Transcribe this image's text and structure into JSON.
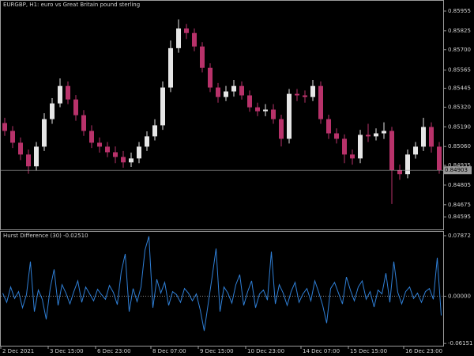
{
  "chart_data": [
    {
      "type": "candlestick",
      "title": "EURGBP, H1: euro vs Great Britain pound sterling",
      "up_color": "#e6e6e6",
      "down_color": "#b8326a",
      "open": [
        0.85215,
        0.85163,
        0.85085,
        0.85007,
        0.84929,
        0.85059,
        0.85241,
        0.85345,
        0.8546,
        0.85371,
        0.85267,
        0.85163,
        0.85085,
        0.85059,
        0.85022,
        0.84991,
        0.84955,
        0.84981,
        0.85059,
        0.85127,
        0.852,
        0.8545,
        0.8571,
        0.8584,
        0.8581,
        0.85721,
        0.8558,
        0.8545,
        0.85387,
        0.85424,
        0.8546,
        0.85398,
        0.85319,
        0.85293,
        0.85304,
        0.85241,
        0.85111,
        0.85408,
        0.85398,
        0.85387,
        0.8546,
        0.85241,
        0.85147,
        0.85111,
        0.85007,
        0.84981,
        0.85137,
        0.85127,
        0.85147,
        0.85163,
        0.84903,
        0.84877,
        0.85007,
        0.85059,
        0.85189,
        0.85059
      ],
      "high": [
        0.8525,
        0.85195,
        0.8512,
        0.8504,
        0.8509,
        0.8528,
        0.8538,
        0.8551,
        0.8549,
        0.854,
        0.853,
        0.852,
        0.8512,
        0.8509,
        0.8506,
        0.8503,
        0.8502,
        0.8509,
        0.8516,
        0.8524,
        0.8549,
        0.8576,
        0.859,
        0.8587,
        0.8584,
        0.8575,
        0.8561,
        0.8548,
        0.8546,
        0.855,
        0.8549,
        0.8543,
        0.8535,
        0.8534,
        0.8534,
        0.8527,
        0.8544,
        0.8544,
        0.8543,
        0.855,
        0.8549,
        0.8527,
        0.8518,
        0.8514,
        0.8504,
        0.8517,
        0.8521,
        0.8518,
        0.8522,
        0.8519,
        0.8494,
        0.8504,
        0.8509,
        0.8525,
        0.8522,
        0.8509
      ],
      "low": [
        0.8513,
        0.8505,
        0.8497,
        0.8488,
        0.849,
        0.8503,
        0.8521,
        0.8532,
        0.8534,
        0.8523,
        0.8513,
        0.8505,
        0.8502,
        0.8499,
        0.8495,
        0.8492,
        0.84925,
        0.8495,
        0.8503,
        0.851,
        0.8517,
        0.8542,
        0.8568,
        0.8577,
        0.8569,
        0.8555,
        0.8542,
        0.8535,
        0.8536,
        0.8539,
        0.8537,
        0.8529,
        0.8526,
        0.8526,
        0.8521,
        0.8506,
        0.8508,
        0.8536,
        0.8535,
        0.8536,
        0.8521,
        0.8511,
        0.8508,
        0.8495,
        0.8494,
        0.8495,
        0.8509,
        0.851,
        0.8511,
        0.8468,
        0.8484,
        0.8485,
        0.8498,
        0.8503,
        0.8502,
        0.8488
      ],
      "close": [
        0.85163,
        0.85085,
        0.85007,
        0.84929,
        0.85059,
        0.85241,
        0.85345,
        0.8546,
        0.85371,
        0.85267,
        0.85163,
        0.85085,
        0.85059,
        0.85022,
        0.84991,
        0.84955,
        0.84981,
        0.85059,
        0.85127,
        0.852,
        0.8545,
        0.8571,
        0.8584,
        0.8581,
        0.85721,
        0.8558,
        0.8545,
        0.85387,
        0.85424,
        0.8546,
        0.85398,
        0.85319,
        0.85293,
        0.85304,
        0.85241,
        0.85111,
        0.85408,
        0.85398,
        0.85387,
        0.8546,
        0.85241,
        0.85147,
        0.85111,
        0.85007,
        0.84981,
        0.85137,
        0.85127,
        0.85147,
        0.85163,
        0.84903,
        0.84877,
        0.85007,
        0.85059,
        0.85189,
        0.85059,
        0.84903
      ],
      "ylim": [
        0.84512,
        0.86023
      ],
      "yticks": [
        0.85955,
        0.85825,
        {
          "value": 0.857,
          "label": "0.85700"
        },
        0.85565,
        0.85445,
        {
          "value": 0.8532,
          "label": "0.85320"
        },
        {
          "value": 0.8519,
          "label": "0.85190"
        },
        {
          "value": 0.8506,
          "label": "0.85060"
        },
        0.84935,
        0.84805,
        0.84675,
        0.84595
      ],
      "xticks": [
        {
          "value": 0,
          "label": "2 Dec 2021"
        },
        {
          "value": 6,
          "label": "3 Dec 15:00"
        },
        {
          "value": 12,
          "label": "6 Dec 23:00"
        },
        {
          "value": 19,
          "label": "8 Dec 07:00"
        },
        {
          "value": 25,
          "label": "9 Dec 15:00"
        },
        {
          "value": 31,
          "label": "10 Dec 23:00"
        },
        {
          "value": 38,
          "label": "14 Dec 07:00"
        },
        {
          "value": 44,
          "label": "15 Dec 15:00"
        },
        {
          "value": 51,
          "label": "16 Dec 23:00"
        }
      ]
    },
    {
      "type": "line",
      "title": "Hurst Difference (30) -0.02510",
      "color": "#2f7fd6",
      "values": [
        0.004,
        -0.008,
        0.012,
        -0.003,
        0.006,
        -0.015,
        0.002,
        0.045,
        -0.02,
        0.008,
        -0.004,
        -0.03,
        0.01,
        0.035,
        -0.012,
        0.015,
        0.004,
        -0.01,
        0.006,
        0.02,
        -0.008,
        0.012,
        0.003,
        -0.006,
        0.009,
        0.002,
        -0.004,
        0.014,
        0.005,
        -0.011,
        0.032,
        0.055,
        -0.02,
        0.01,
        -0.007,
        0.012,
        0.06,
        0.078,
        -0.015,
        0.022,
        0.004,
        0.018,
        -0.012,
        0.006,
        0.002,
        -0.008,
        0.01,
        0.004,
        -0.006,
        0.003,
        -0.018,
        -0.045,
        -0.01,
        0.025,
        0.062,
        -0.02,
        0.012,
        0.004,
        -0.009,
        0.015,
        0.028,
        -0.012,
        0.006,
        0.02,
        -0.015,
        0.003,
        0.008,
        -0.005,
        0.058,
        -0.01,
        0.015,
        0.004,
        -0.012,
        0.006,
        0.018,
        -0.008,
        0.003,
        0.01,
        -0.006,
        0.02,
        0.005,
        -0.012,
        -0.035,
        0.01,
        0.018,
        0.004,
        -0.01,
        0.025,
        0.008,
        -0.006,
        0.012,
        0.02,
        -0.004,
        0.006,
        -0.014,
        0.008,
        0.003,
        0.03,
        -0.008,
        0.045,
        0.005,
        -0.01,
        0.006,
        0.012,
        -0.003,
        0.004,
        -0.008,
        0.006,
        0.01,
        -0.004,
        0.05,
        -0.025
      ],
      "ylim": [
        -0.0644,
        0.0838
      ],
      "yticks": [
        0.07872,
        {
          "value": 0,
          "label": "0.00000"
        },
        -0.06151
      ],
      "levels": [
        0
      ]
    }
  ]
}
